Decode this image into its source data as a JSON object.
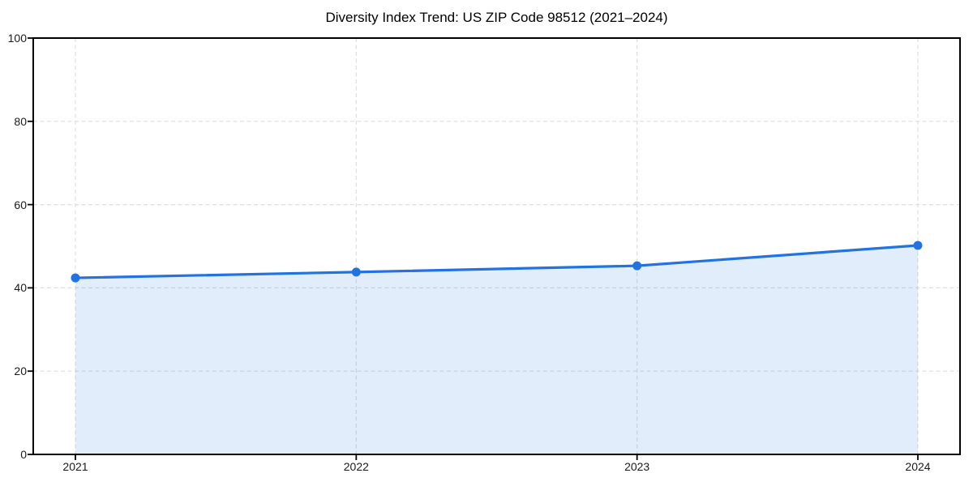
{
  "figure": {
    "background": "#ffffff"
  },
  "chart_data": {
    "type": "area",
    "title": "Diversity Index Trend: US ZIP Code 98512 (2021–2024)",
    "categories": [
      "2021",
      "2022",
      "2023",
      "2024"
    ],
    "values": [
      42.4,
      43.8,
      45.3,
      50.2
    ],
    "series_name": "Diversity Index",
    "xlabel": "",
    "ylabel": "",
    "ylim": [
      0,
      100
    ],
    "yticks": [
      0,
      20,
      40,
      60,
      80,
      100
    ],
    "legend_position": "none",
    "grid": {
      "style": "dashed",
      "axes": "both",
      "color": "#dedede"
    },
    "line_color": "#2273e1",
    "marker": "circle",
    "marker_color": "#2273e1",
    "fill_color": "#2273e1",
    "fill_opacity": 0.13,
    "axis_color": "#000000",
    "tick_label_color": "#1a1a1a"
  }
}
